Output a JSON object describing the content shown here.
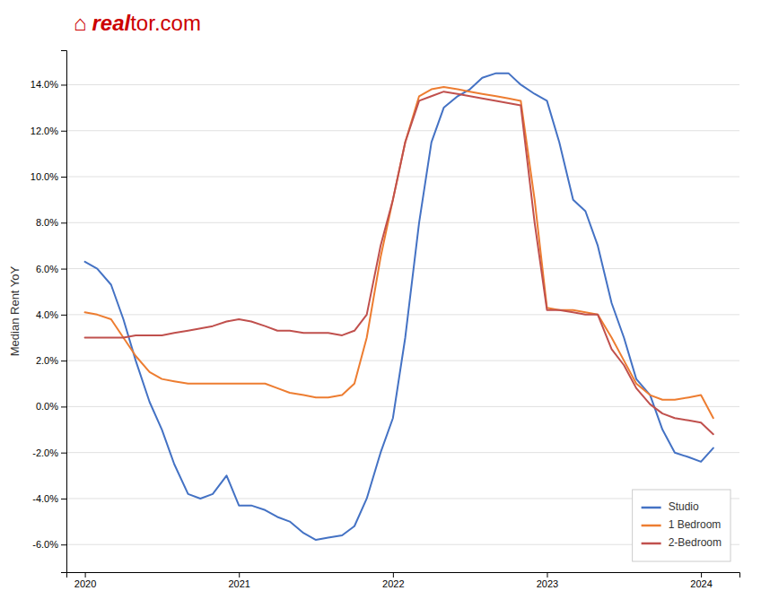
{
  "chart_data": {
    "type": "line",
    "y_label": "Median Rent YoY",
    "annotations": [
      {
        "text": "⌂",
        "color": "#cc0000"
      },
      {
        "text": "real",
        "color": "#cc0000"
      },
      {
        "text": "tor.com",
        "color": "#cc0000"
      }
    ],
    "x": [
      2020.0,
      2020.08,
      2020.17,
      2020.25,
      2020.33,
      2020.42,
      2020.5,
      2020.58,
      2020.67,
      2020.75,
      2020.83,
      2020.92,
      2021.0,
      2021.08,
      2021.17,
      2021.25,
      2021.33,
      2021.42,
      2021.5,
      2021.58,
      2021.67,
      2021.75,
      2021.83,
      2021.92,
      2022.0,
      2022.08,
      2022.17,
      2022.25,
      2022.33,
      2022.42,
      2022.5,
      2022.58,
      2022.67,
      2022.75,
      2022.83,
      2022.92,
      2023.0,
      2023.08,
      2023.17,
      2023.25,
      2023.33,
      2023.42,
      2023.5,
      2023.58,
      2023.67,
      2023.75,
      2023.83,
      2023.92,
      2024.0,
      2024.08
    ],
    "series": [
      {
        "name": "Studio",
        "color": "#4472C4",
        "values": [
          0.063,
          0.06,
          0.053,
          0.038,
          0.02,
          0.002,
          -0.01,
          -0.025,
          -0.038,
          -0.04,
          -0.038,
          -0.03,
          -0.043,
          -0.043,
          -0.045,
          -0.048,
          -0.05,
          -0.055,
          -0.058,
          -0.057,
          -0.056,
          -0.052,
          -0.04,
          -0.02,
          -0.005,
          0.03,
          0.08,
          0.115,
          0.13,
          0.135,
          0.138,
          0.143,
          0.145,
          0.145,
          0.14,
          0.136,
          0.133,
          0.115,
          0.09,
          0.085,
          0.07,
          0.045,
          0.03,
          0.012,
          0.005,
          -0.01,
          -0.02,
          -0.022,
          -0.024,
          -0.018
        ]
      },
      {
        "name": "1 Bedroom",
        "color": "#ED7D31",
        "values": [
          0.041,
          0.04,
          0.038,
          0.03,
          0.022,
          0.015,
          0.012,
          0.011,
          0.01,
          0.01,
          0.01,
          0.01,
          0.01,
          0.01,
          0.01,
          0.008,
          0.006,
          0.005,
          0.004,
          0.004,
          0.005,
          0.01,
          0.03,
          0.065,
          0.09,
          0.115,
          0.135,
          0.138,
          0.139,
          0.138,
          0.137,
          0.136,
          0.135,
          0.134,
          0.133,
          0.09,
          0.043,
          0.042,
          0.042,
          0.041,
          0.04,
          0.03,
          0.02,
          0.01,
          0.005,
          0.003,
          0.003,
          0.004,
          0.005,
          -0.005
        ]
      },
      {
        "name": "2-Bedroom",
        "color": "#C0504D",
        "values": [
          0.03,
          0.03,
          0.03,
          0.03,
          0.031,
          0.031,
          0.031,
          0.032,
          0.033,
          0.034,
          0.035,
          0.037,
          0.038,
          0.037,
          0.035,
          0.033,
          0.033,
          0.032,
          0.032,
          0.032,
          0.031,
          0.033,
          0.04,
          0.07,
          0.09,
          0.115,
          0.133,
          0.135,
          0.137,
          0.136,
          0.135,
          0.134,
          0.133,
          0.132,
          0.131,
          0.08,
          0.042,
          0.042,
          0.041,
          0.04,
          0.04,
          0.025,
          0.018,
          0.008,
          0.001,
          -0.003,
          -0.005,
          -0.006,
          -0.007,
          -0.012
        ]
      }
    ],
    "xlim": [
      2019.88,
      2024.25
    ],
    "xticks": [
      2020,
      2021,
      2022,
      2023,
      2024
    ],
    "ylim": [
      -0.072,
      0.155
    ],
    "yticks": [
      {
        "value": -0.06,
        "label": "-6.0%"
      },
      {
        "value": -0.04,
        "label": "-4.0%"
      },
      {
        "value": -0.02,
        "label": "-2.0%"
      },
      {
        "value": 0.0,
        "label": "0.0%"
      },
      {
        "value": 0.02,
        "label": "2.0%"
      },
      {
        "value": 0.04,
        "label": "4.0%"
      },
      {
        "value": 0.06,
        "label": "6.0%"
      },
      {
        "value": 0.08,
        "label": "8.0%"
      },
      {
        "value": 0.1,
        "label": "10.0%"
      },
      {
        "value": 0.12,
        "label": "12.0%"
      },
      {
        "value": 0.14,
        "label": "14.0%"
      }
    ],
    "grid": true,
    "legend": "lower right"
  }
}
